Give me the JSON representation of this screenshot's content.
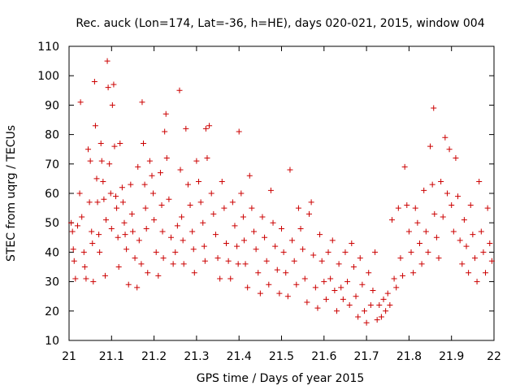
{
  "chart_data": {
    "type": "scatter",
    "title": "Rec. auck (Lon=174, Lat=-36, h=HE), days 020-021, 2015, window 004",
    "xlabel": "GPS time / Days of year 2015",
    "ylabel": "STEC from uqrg / TECUs",
    "xlim": [
      21,
      22
    ],
    "ylim": [
      10,
      110
    ],
    "xticks": [
      "21",
      "21.1",
      "21.2",
      "21.3",
      "21.4",
      "21.5",
      "21.6",
      "21.7",
      "21.8",
      "21.9",
      "22"
    ],
    "yticks": [
      "10",
      "20",
      "30",
      "40",
      "50",
      "60",
      "70",
      "80",
      "90",
      "100",
      "110"
    ],
    "marker": "+",
    "color": "#cc0000",
    "grid": false,
    "legend": "none",
    "points": [
      [
        21.005,
        50
      ],
      [
        21.008,
        47
      ],
      [
        21.01,
        41
      ],
      [
        21.012,
        37
      ],
      [
        21.015,
        31
      ],
      [
        21.02,
        49
      ],
      [
        21.025,
        60
      ],
      [
        21.027,
        91
      ],
      [
        21.03,
        52
      ],
      [
        21.035,
        40
      ],
      [
        21.037,
        35
      ],
      [
        21.04,
        31
      ],
      [
        21.045,
        75
      ],
      [
        21.048,
        57
      ],
      [
        21.05,
        71
      ],
      [
        21.053,
        47
      ],
      [
        21.055,
        43
      ],
      [
        21.057,
        30
      ],
      [
        21.06,
        98
      ],
      [
        21.062,
        83
      ],
      [
        21.065,
        65
      ],
      [
        21.067,
        57
      ],
      [
        21.07,
        46
      ],
      [
        21.072,
        40
      ],
      [
        21.075,
        77
      ],
      [
        21.077,
        71
      ],
      [
        21.08,
        64
      ],
      [
        21.082,
        58
      ],
      [
        21.085,
        32
      ],
      [
        21.087,
        51
      ],
      [
        21.09,
        105
      ],
      [
        21.092,
        96
      ],
      [
        21.095,
        70
      ],
      [
        21.098,
        60
      ],
      [
        21.1,
        48
      ],
      [
        21.102,
        90
      ],
      [
        21.105,
        97
      ],
      [
        21.107,
        76
      ],
      [
        21.11,
        59
      ],
      [
        21.112,
        55
      ],
      [
        21.115,
        45
      ],
      [
        21.117,
        35
      ],
      [
        21.12,
        77
      ],
      [
        21.125,
        62
      ],
      [
        21.127,
        57
      ],
      [
        21.13,
        50
      ],
      [
        21.132,
        46
      ],
      [
        21.135,
        41
      ],
      [
        21.14,
        29
      ],
      [
        21.145,
        63
      ],
      [
        21.148,
        53
      ],
      [
        21.15,
        47
      ],
      [
        21.155,
        38
      ],
      [
        21.16,
        28
      ],
      [
        21.162,
        69
      ],
      [
        21.165,
        44
      ],
      [
        21.17,
        36
      ],
      [
        21.172,
        91
      ],
      [
        21.175,
        77
      ],
      [
        21.178,
        63
      ],
      [
        21.18,
        55
      ],
      [
        21.182,
        48
      ],
      [
        21.185,
        33
      ],
      [
        21.19,
        71
      ],
      [
        21.195,
        66
      ],
      [
        21.198,
        60
      ],
      [
        21.2,
        51
      ],
      [
        21.205,
        40
      ],
      [
        21.21,
        32
      ],
      [
        21.215,
        67
      ],
      [
        21.218,
        56
      ],
      [
        21.22,
        47
      ],
      [
        21.222,
        38
      ],
      [
        21.225,
        81
      ],
      [
        21.228,
        87
      ],
      [
        21.23,
        72
      ],
      [
        21.235,
        58
      ],
      [
        21.24,
        45
      ],
      [
        21.245,
        36
      ],
      [
        21.25,
        40
      ],
      [
        21.255,
        49
      ],
      [
        21.26,
        95
      ],
      [
        21.262,
        68
      ],
      [
        21.265,
        52
      ],
      [
        21.268,
        44
      ],
      [
        21.27,
        36
      ],
      [
        21.275,
        82
      ],
      [
        21.28,
        63
      ],
      [
        21.285,
        56
      ],
      [
        21.29,
        47
      ],
      [
        21.293,
        41
      ],
      [
        21.295,
        33
      ],
      [
        21.3,
        71
      ],
      [
        21.305,
        64
      ],
      [
        21.31,
        57
      ],
      [
        21.315,
        50
      ],
      [
        21.318,
        42
      ],
      [
        21.32,
        37
      ],
      [
        21.322,
        82
      ],
      [
        21.325,
        72
      ],
      [
        21.33,
        83
      ],
      [
        21.335,
        60
      ],
      [
        21.34,
        53
      ],
      [
        21.345,
        46
      ],
      [
        21.35,
        38
      ],
      [
        21.355,
        31
      ],
      [
        21.36,
        64
      ],
      [
        21.365,
        55
      ],
      [
        21.37,
        43
      ],
      [
        21.375,
        37
      ],
      [
        21.38,
        31
      ],
      [
        21.385,
        57
      ],
      [
        21.39,
        49
      ],
      [
        21.395,
        42
      ],
      [
        21.398,
        36
      ],
      [
        21.4,
        81
      ],
      [
        21.405,
        60
      ],
      [
        21.41,
        52
      ],
      [
        21.412,
        44
      ],
      [
        21.415,
        36
      ],
      [
        21.42,
        28
      ],
      [
        21.425,
        66
      ],
      [
        21.43,
        55
      ],
      [
        21.435,
        47
      ],
      [
        21.44,
        41
      ],
      [
        21.445,
        33
      ],
      [
        21.45,
        26
      ],
      [
        21.455,
        52
      ],
      [
        21.46,
        45
      ],
      [
        21.465,
        37
      ],
      [
        21.47,
        29
      ],
      [
        21.475,
        61
      ],
      [
        21.48,
        50
      ],
      [
        21.485,
        42
      ],
      [
        21.49,
        34
      ],
      [
        21.495,
        26
      ],
      [
        21.5,
        48
      ],
      [
        21.505,
        40
      ],
      [
        21.51,
        33
      ],
      [
        21.515,
        25
      ],
      [
        21.52,
        68
      ],
      [
        21.525,
        44
      ],
      [
        21.53,
        37
      ],
      [
        21.535,
        29
      ],
      [
        21.54,
        55
      ],
      [
        21.545,
        48
      ],
      [
        21.55,
        41
      ],
      [
        21.555,
        31
      ],
      [
        21.56,
        23
      ],
      [
        21.565,
        53
      ],
      [
        21.57,
        57
      ],
      [
        21.575,
        39
      ],
      [
        21.58,
        28
      ],
      [
        21.585,
        21
      ],
      [
        21.59,
        46
      ],
      [
        21.595,
        37
      ],
      [
        21.6,
        30
      ],
      [
        21.605,
        24
      ],
      [
        21.61,
        40
      ],
      [
        21.615,
        31
      ],
      [
        21.62,
        44
      ],
      [
        21.625,
        27
      ],
      [
        21.63,
        20
      ],
      [
        21.635,
        36
      ],
      [
        21.64,
        28
      ],
      [
        21.645,
        24
      ],
      [
        21.65,
        40
      ],
      [
        21.655,
        30
      ],
      [
        21.66,
        22
      ],
      [
        21.665,
        43
      ],
      [
        21.67,
        35
      ],
      [
        21.675,
        25
      ],
      [
        21.68,
        18
      ],
      [
        21.685,
        38
      ],
      [
        21.69,
        29
      ],
      [
        21.695,
        20
      ],
      [
        21.7,
        16
      ],
      [
        21.705,
        33
      ],
      [
        21.71,
        22
      ],
      [
        21.715,
        27
      ],
      [
        21.72,
        40
      ],
      [
        21.725,
        17
      ],
      [
        21.73,
        22
      ],
      [
        21.735,
        18
      ],
      [
        21.74,
        24
      ],
      [
        21.745,
        20
      ],
      [
        21.75,
        26
      ],
      [
        21.755,
        22
      ],
      [
        21.76,
        51
      ],
      [
        21.765,
        31
      ],
      [
        21.77,
        28
      ],
      [
        21.775,
        55
      ],
      [
        21.78,
        38
      ],
      [
        21.785,
        32
      ],
      [
        21.79,
        69
      ],
      [
        21.795,
        56
      ],
      [
        21.8,
        47
      ],
      [
        21.805,
        40
      ],
      [
        21.81,
        33
      ],
      [
        21.815,
        55
      ],
      [
        21.82,
        50
      ],
      [
        21.825,
        43
      ],
      [
        21.83,
        36
      ],
      [
        21.835,
        61
      ],
      [
        21.84,
        47
      ],
      [
        21.845,
        40
      ],
      [
        21.85,
        76
      ],
      [
        21.855,
        63
      ],
      [
        21.858,
        89
      ],
      [
        21.86,
        53
      ],
      [
        21.865,
        45
      ],
      [
        21.87,
        38
      ],
      [
        21.875,
        64
      ],
      [
        21.88,
        52
      ],
      [
        21.885,
        79
      ],
      [
        21.89,
        60
      ],
      [
        21.895,
        75
      ],
      [
        21.9,
        56
      ],
      [
        21.905,
        47
      ],
      [
        21.91,
        72
      ],
      [
        21.915,
        59
      ],
      [
        21.92,
        44
      ],
      [
        21.925,
        36
      ],
      [
        21.93,
        51
      ],
      [
        21.935,
        42
      ],
      [
        21.94,
        33
      ],
      [
        21.945,
        56
      ],
      [
        21.95,
        46
      ],
      [
        21.955,
        38
      ],
      [
        21.96,
        30
      ],
      [
        21.965,
        64
      ],
      [
        21.97,
        47
      ],
      [
        21.975,
        40
      ],
      [
        21.98,
        33
      ],
      [
        21.985,
        55
      ],
      [
        21.99,
        43
      ],
      [
        21.995,
        37
      ]
    ]
  }
}
